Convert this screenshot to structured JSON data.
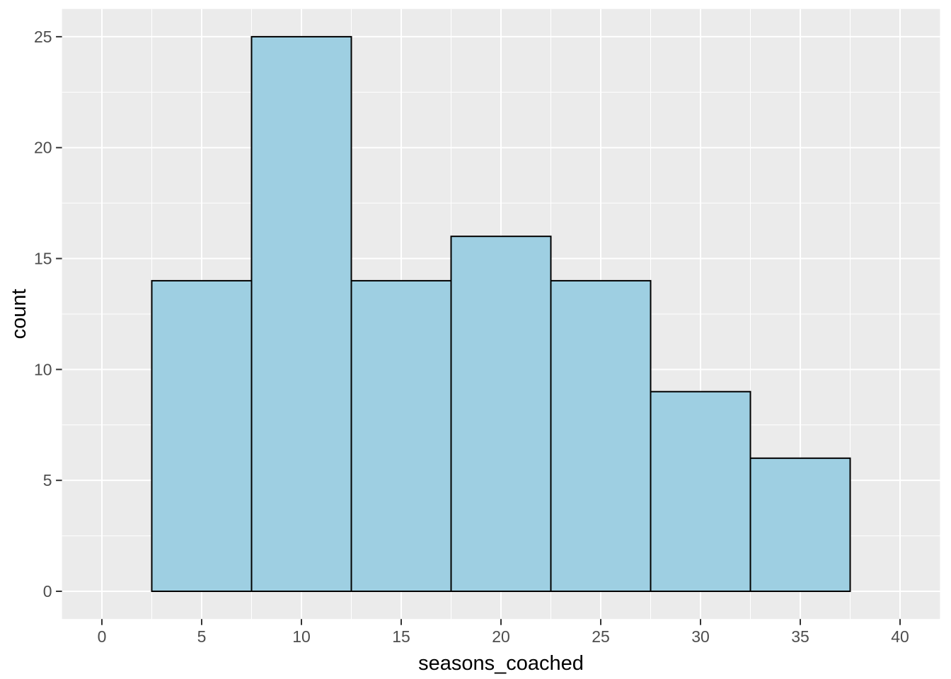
{
  "figure": {
    "background": "#FFFFFF"
  },
  "chart_data": {
    "type": "bar",
    "subtype": "histogram",
    "xlabel": "seasons_coached",
    "ylabel": "count",
    "bin_width": 5,
    "bin_edges": [
      2.5,
      7.5,
      12.5,
      17.5,
      22.5,
      27.5,
      32.5,
      37.5
    ],
    "bin_centers": [
      5,
      10,
      15,
      20,
      25,
      30,
      35
    ],
    "counts": [
      14,
      25,
      14,
      16,
      14,
      9,
      6
    ],
    "x_ticks": [
      0,
      5,
      10,
      15,
      20,
      25,
      30,
      35,
      40
    ],
    "y_ticks": [
      0,
      5,
      10,
      15,
      20,
      25
    ],
    "x_minor_gridlines": [
      2.5,
      7.5,
      12.5,
      17.5,
      22.5,
      27.5,
      32.5,
      37.5
    ],
    "y_minor_gridlines": [
      2.5,
      7.5,
      12.5,
      17.5,
      22.5
    ],
    "xlim": [
      -2,
      42
    ],
    "ylim": [
      -1.25,
      26.25
    ],
    "grid": "major-and-minor",
    "legend": "none",
    "style": {
      "panel_background": "#EBEBEB",
      "gridline_color": "#FFFFFF",
      "bar_fill": "#9ECFE2",
      "bar_stroke": "#000000",
      "tick_mark_color": "#333333",
      "tick_label_color": "#4D4D4D",
      "axis_title_color": "#000000"
    }
  }
}
